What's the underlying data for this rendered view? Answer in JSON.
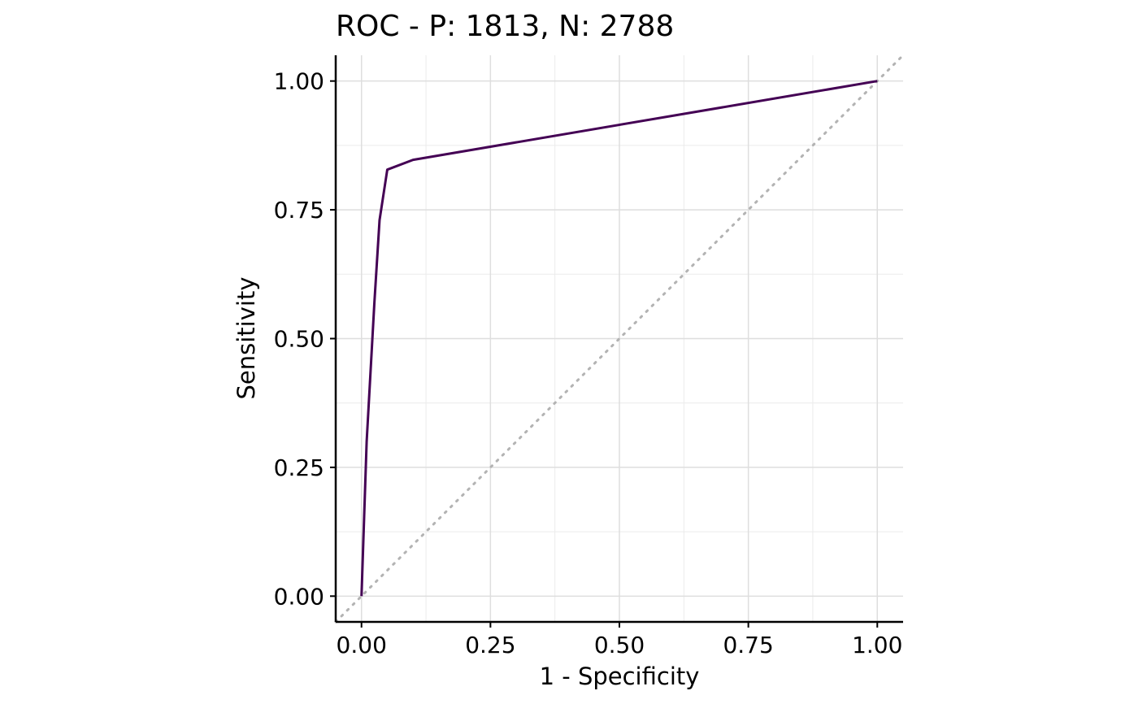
{
  "chart_data": {
    "type": "line",
    "title": "ROC - P: 1813, N: 2788",
    "xlabel": "1 - Specificity",
    "ylabel": "Sensitivity",
    "xlim": [
      -0.05,
      1.05
    ],
    "ylim": [
      -0.05,
      1.05
    ],
    "x_ticks": [
      0.0,
      0.25,
      0.5,
      0.75,
      1.0
    ],
    "x_tick_labels": [
      "0.00",
      "0.25",
      "0.50",
      "0.75",
      "1.00"
    ],
    "y_ticks": [
      0.0,
      0.25,
      0.5,
      0.75,
      1.0
    ],
    "y_tick_labels": [
      "0.00",
      "0.25",
      "0.50",
      "0.75",
      "1.00"
    ],
    "x_minor_ticks": [
      0.125,
      0.375,
      0.625,
      0.875
    ],
    "y_minor_ticks": [
      0.125,
      0.375,
      0.625,
      0.875
    ],
    "grid": true,
    "series": [
      {
        "color": "#440154",
        "x": [
          0.0,
          0.01,
          0.025,
          0.035,
          0.05,
          0.1,
          1.0
        ],
        "y": [
          0.0,
          0.3,
          0.57,
          0.73,
          0.828,
          0.847,
          1.0
        ]
      }
    ],
    "reference_line": {
      "style": "dotted",
      "color": "#b3b3b3",
      "x": [
        -0.05,
        1.05
      ],
      "y": [
        -0.05,
        1.05
      ]
    }
  }
}
